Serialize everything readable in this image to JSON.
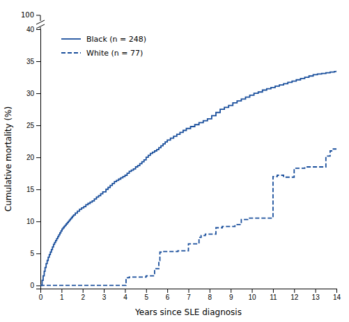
{
  "chart_data": {
    "type": "step",
    "xlabel": "Years since SLE diagnosis",
    "ylabel": "Cumulative mortality (%)",
    "xlim": [
      0,
      14
    ],
    "ylim": [
      -0.5,
      40
    ],
    "xticks": [
      0,
      1,
      2,
      3,
      4,
      5,
      6,
      7,
      8,
      9,
      10,
      11,
      12,
      13,
      14
    ],
    "yticks": [
      0,
      5,
      10,
      15,
      20,
      25,
      30,
      35,
      40
    ],
    "grid": false,
    "legend": "upper left",
    "annotations": [
      {
        "text": "100"
      }
    ],
    "series": [
      {
        "name": "Black (n = 248)",
        "color": "#1a4f9c",
        "line_style": "solid",
        "x": [
          0,
          0.08,
          0.13,
          0.18,
          0.22,
          0.27,
          0.32,
          0.37,
          0.42,
          0.47,
          0.52,
          0.57,
          0.62,
          0.67,
          0.72,
          0.77,
          0.82,
          0.87,
          0.92,
          0.97,
          1.02,
          1.07,
          1.12,
          1.17,
          1.22,
          1.27,
          1.32,
          1.37,
          1.42,
          1.47,
          1.52,
          1.57,
          1.65,
          1.75,
          1.85,
          1.95,
          2.05,
          2.15,
          2.25,
          2.35,
          2.45,
          2.55,
          2.65,
          2.75,
          2.85,
          2.95,
          3.1,
          3.2,
          3.3,
          3.4,
          3.5,
          3.6,
          3.7,
          3.8,
          3.9,
          4.0,
          4.1,
          4.2,
          4.3,
          4.4,
          4.5,
          4.6,
          4.7,
          4.8,
          4.9,
          5.0,
          5.1,
          5.2,
          5.3,
          5.4,
          5.5,
          5.6,
          5.7,
          5.8,
          5.9,
          6.0,
          6.15,
          6.3,
          6.45,
          6.6,
          6.75,
          6.9,
          7.1,
          7.3,
          7.5,
          7.7,
          7.9,
          8.1,
          8.3,
          8.5,
          8.7,
          8.9,
          9.1,
          9.3,
          9.5,
          9.7,
          9.9,
          10.1,
          10.3,
          10.5,
          10.7,
          10.9,
          11.1,
          11.3,
          11.5,
          11.7,
          11.9,
          12.1,
          12.3,
          12.5,
          12.7,
          12.9,
          13.1,
          13.3,
          13.5,
          13.7,
          13.9,
          14.0
        ],
        "values": [
          0,
          0.8,
          1.5,
          2.2,
          2.8,
          3.4,
          3.9,
          4.4,
          4.8,
          5.2,
          5.6,
          6.0,
          6.4,
          6.7,
          7.0,
          7.3,
          7.6,
          7.9,
          8.2,
          8.5,
          8.8,
          9.0,
          9.2,
          9.4,
          9.6,
          9.8,
          10.0,
          10.2,
          10.4,
          10.6,
          10.8,
          11.0,
          11.3,
          11.6,
          11.9,
          12.1,
          12.3,
          12.6,
          12.8,
          13.0,
          13.2,
          13.5,
          13.8,
          14.0,
          14.3,
          14.6,
          15.0,
          15.3,
          15.6,
          15.9,
          16.2,
          16.4,
          16.6,
          16.8,
          17.0,
          17.2,
          17.5,
          17.8,
          18.0,
          18.2,
          18.5,
          18.7,
          19.0,
          19.3,
          19.6,
          20.0,
          20.3,
          20.6,
          20.8,
          21.0,
          21.2,
          21.5,
          21.8,
          22.1,
          22.4,
          22.7,
          23.0,
          23.3,
          23.6,
          23.9,
          24.2,
          24.5,
          24.8,
          25.1,
          25.4,
          25.7,
          26.0,
          26.5,
          27.0,
          27.5,
          27.8,
          28.1,
          28.5,
          28.8,
          29.1,
          29.4,
          29.7,
          30.0,
          30.2,
          30.5,
          30.7,
          30.9,
          31.1,
          31.3,
          31.5,
          31.7,
          31.9,
          32.1,
          32.3,
          32.5,
          32.7,
          32.9,
          33.0,
          33.1,
          33.2,
          33.3,
          33.4,
          33.5
        ]
      },
      {
        "name": "White (n = 77)",
        "color": "#1a4f9c",
        "line_style": "dashed",
        "x": [
          0,
          0.5,
          1.0,
          1.5,
          2.0,
          2.5,
          3.0,
          3.5,
          3.9,
          4.05,
          4.2,
          4.5,
          4.8,
          5.0,
          5.4,
          5.6,
          5.65,
          5.8,
          6.0,
          6.3,
          6.5,
          7.0,
          7.5,
          7.6,
          7.8,
          8.0,
          8.3,
          8.6,
          8.9,
          9.2,
          9.5,
          9.8,
          10.0,
          10.5,
          11.0,
          11.1,
          11.2,
          11.3,
          11.5,
          11.8,
          12.0,
          12.5,
          13.0,
          13.5,
          13.7,
          13.85,
          14.0
        ],
        "values": [
          0,
          0,
          0,
          0,
          0,
          0,
          0,
          0,
          0,
          1.2,
          1.3,
          1.3,
          1.3,
          1.5,
          2.6,
          3.9,
          5.2,
          5.3,
          5.3,
          5.3,
          5.4,
          6.5,
          7.5,
          7.8,
          8.0,
          8.0,
          9.0,
          9.2,
          9.2,
          9.5,
          10.3,
          10.5,
          10.5,
          10.5,
          17.0,
          17.0,
          17.2,
          17.2,
          16.9,
          16.9,
          18.3,
          18.5,
          18.5,
          20.2,
          21.0,
          21.3,
          21.3
        ]
      }
    ]
  }
}
